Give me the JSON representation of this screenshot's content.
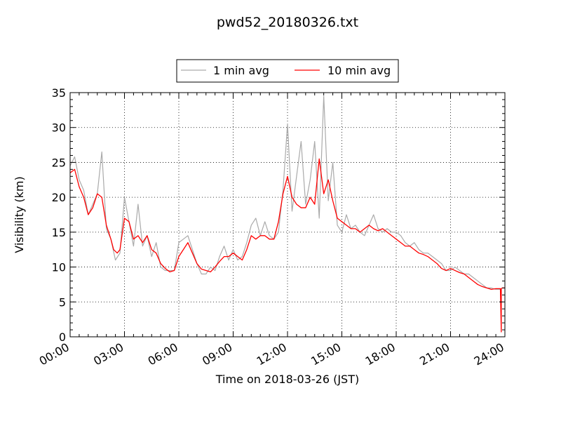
{
  "chart_data": {
    "type": "line",
    "title": "pwd52_20180326.txt",
    "xlabel": "Time on 2018-03-26 (JST)",
    "ylabel": "Visibility (km)",
    "xlim": [
      0,
      24
    ],
    "ylim": [
      0,
      35
    ],
    "x_ticks": [
      0,
      3,
      6,
      9,
      12,
      15,
      18,
      21,
      24
    ],
    "x_tick_labels": [
      "00:00",
      "03:00",
      "06:00",
      "09:00",
      "12:00",
      "15:00",
      "18:00",
      "21:00",
      "24:00"
    ],
    "y_ticks": [
      0,
      5,
      10,
      15,
      20,
      25,
      30,
      35
    ],
    "y_tick_labels": [
      "0",
      "5",
      "10",
      "15",
      "20",
      "25",
      "30",
      "35"
    ],
    "grid": true,
    "legend_position": "top-center, above plot",
    "series": [
      {
        "name": "1 min avg",
        "color": "#aaaaaa",
        "note": "noisy 1-minute data; approximate fluctuation envelope around 10-min average",
        "x": [
          0.0,
          0.25,
          0.5,
          0.75,
          1.0,
          1.25,
          1.5,
          1.75,
          2.0,
          2.25,
          2.5,
          2.75,
          3.0,
          3.25,
          3.5,
          3.75,
          4.0,
          4.25,
          4.5,
          4.75,
          5.0,
          5.25,
          5.5,
          5.75,
          6.0,
          6.25,
          6.5,
          6.75,
          7.0,
          7.25,
          7.5,
          7.75,
          8.0,
          8.25,
          8.5,
          8.75,
          9.0,
          9.25,
          9.5,
          9.75,
          10.0,
          10.25,
          10.5,
          10.75,
          11.0,
          11.25,
          11.5,
          11.75,
          12.0,
          12.25,
          12.5,
          12.75,
          13.0,
          13.25,
          13.5,
          13.75,
          14.0,
          14.25,
          14.5,
          14.75,
          15.0,
          15.25,
          15.5,
          15.75,
          16.0,
          16.25,
          16.5,
          16.75,
          17.0,
          17.25,
          17.5,
          17.75,
          18.0,
          18.25,
          18.5,
          18.75,
          19.0,
          19.25,
          19.5,
          19.75,
          20.0,
          20.25,
          20.5,
          20.75,
          21.0,
          21.25,
          21.5,
          21.75,
          22.0,
          22.25,
          22.5,
          22.75,
          23.0,
          23.25,
          23.5,
          23.75
        ],
        "y": [
          24.5,
          25.8,
          22.5,
          21.0,
          17.5,
          19.0,
          20.5,
          26.5,
          15.5,
          14.0,
          11.0,
          12.0,
          20.0,
          16.5,
          13.0,
          19.0,
          13.0,
          14.5,
          11.5,
          13.5,
          10.0,
          9.5,
          9.5,
          9.5,
          13.5,
          14.0,
          14.5,
          12.5,
          10.5,
          9.0,
          9.0,
          10.0,
          9.5,
          11.5,
          13.0,
          11.0,
          12.5,
          11.0,
          11.5,
          13.5,
          16.0,
          17.0,
          14.5,
          16.5,
          14.5,
          14.0,
          15.0,
          21.0,
          30.5,
          18.0,
          23.0,
          28.0,
          19.0,
          22.5,
          28.0,
          17.0,
          34.5,
          19.5,
          25.0,
          16.0,
          15.0,
          17.5,
          15.5,
          16.0,
          15.0,
          14.5,
          16.0,
          17.5,
          15.5,
          15.0,
          15.5,
          15.0,
          15.0,
          14.5,
          13.5,
          13.0,
          13.5,
          12.5,
          12.0,
          12.0,
          11.5,
          11.0,
          10.5,
          9.5,
          9.5,
          10.0,
          9.5,
          9.0,
          9.0,
          8.5,
          8.0,
          7.5,
          7.0,
          7.0,
          6.8,
          6.8
        ]
      },
      {
        "name": "10 min avg",
        "color": "#ff0000",
        "x": [
          0.0,
          0.25,
          0.5,
          0.75,
          1.0,
          1.25,
          1.5,
          1.75,
          2.0,
          2.25,
          2.4,
          2.6,
          2.75,
          3.0,
          3.25,
          3.5,
          3.75,
          4.0,
          4.25,
          4.5,
          4.75,
          5.0,
          5.25,
          5.5,
          5.75,
          6.0,
          6.25,
          6.5,
          6.75,
          7.0,
          7.25,
          7.5,
          7.75,
          8.0,
          8.25,
          8.5,
          8.75,
          9.0,
          9.25,
          9.5,
          9.75,
          10.0,
          10.25,
          10.5,
          10.75,
          11.0,
          11.25,
          11.5,
          11.75,
          12.0,
          12.25,
          12.5,
          12.75,
          13.0,
          13.25,
          13.5,
          13.75,
          14.0,
          14.25,
          14.5,
          14.75,
          15.0,
          15.25,
          15.5,
          15.75,
          16.0,
          16.25,
          16.5,
          16.75,
          17.0,
          17.25,
          17.5,
          17.75,
          18.0,
          18.25,
          18.5,
          18.75,
          19.0,
          19.25,
          19.5,
          19.75,
          20.0,
          20.25,
          20.5,
          20.75,
          21.0,
          21.25,
          21.5,
          21.75,
          22.0,
          22.25,
          22.5,
          22.75,
          23.0,
          23.25,
          23.5,
          23.75,
          23.8,
          23.8,
          23.85,
          24.0
        ],
        "y": [
          23.5,
          24.0,
          21.5,
          20.0,
          17.5,
          18.5,
          20.5,
          20.0,
          16.0,
          14.0,
          12.5,
          12.0,
          12.5,
          17.0,
          16.5,
          14.0,
          14.5,
          13.5,
          14.5,
          12.5,
          12.0,
          10.5,
          9.8,
          9.3,
          9.5,
          11.5,
          12.5,
          13.5,
          12.0,
          10.5,
          9.7,
          9.5,
          9.3,
          10.0,
          10.8,
          11.5,
          11.5,
          12.0,
          11.5,
          11.0,
          12.5,
          14.5,
          14.0,
          14.5,
          14.5,
          14.0,
          14.0,
          16.5,
          20.5,
          23.0,
          20.0,
          19.0,
          18.5,
          18.5,
          20.0,
          19.0,
          25.5,
          20.5,
          22.5,
          19.5,
          17.0,
          16.5,
          16.0,
          15.5,
          15.5,
          15.0,
          15.5,
          16.0,
          15.5,
          15.2,
          15.5,
          15.0,
          14.5,
          14.0,
          13.5,
          13.0,
          13.0,
          12.5,
          12.0,
          11.8,
          11.5,
          11.0,
          10.5,
          9.8,
          9.5,
          9.8,
          9.5,
          9.2,
          9.0,
          8.5,
          8.0,
          7.5,
          7.2,
          7.0,
          6.8,
          6.9,
          6.9,
          0.7,
          6.9,
          7.0,
          7.0
        ]
      }
    ]
  }
}
